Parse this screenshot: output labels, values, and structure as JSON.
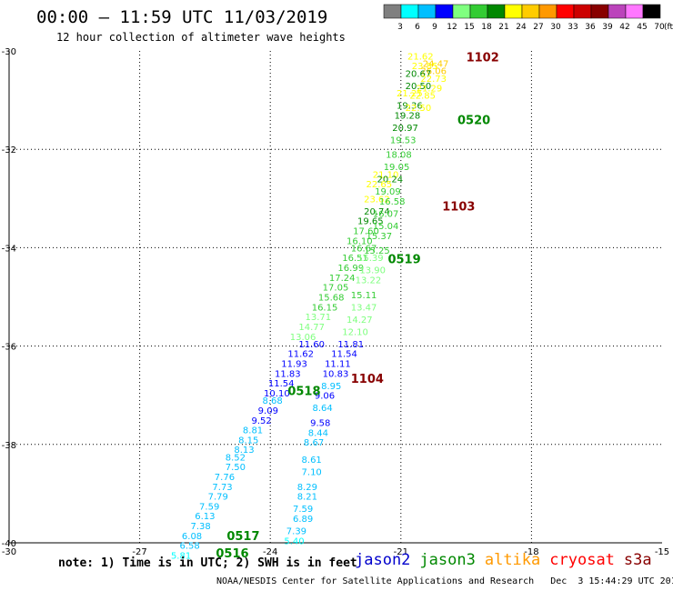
{
  "header": {
    "title": "00:00 – 11:59 UTC 11/03/2019",
    "subtitle": "12 hour collection of altimeter wave heights"
  },
  "legend": {
    "unit": "(ft)",
    "bins": [
      {
        "label": "3",
        "color": "#7f7f7f"
      },
      {
        "label": "6",
        "color": "#00ffff"
      },
      {
        "label": "9",
        "color": "#00bfff"
      },
      {
        "label": "12",
        "color": "#0000ff"
      },
      {
        "label": "15",
        "color": "#7fff7f"
      },
      {
        "label": "18",
        "color": "#33cc33"
      },
      {
        "label": "21",
        "color": "#008800"
      },
      {
        "label": "24",
        "color": "#ffff00"
      },
      {
        "label": "27",
        "color": "#ffcc00"
      },
      {
        "label": "30",
        "color": "#ff9900"
      },
      {
        "label": "33",
        "color": "#ff0000"
      },
      {
        "label": "36",
        "color": "#cc0000"
      },
      {
        "label": "39",
        "color": "#880000"
      },
      {
        "label": "42",
        "color": "#bb44bb"
      },
      {
        "label": "45",
        "color": "#ff77ff"
      },
      {
        "label": "70",
        "color": "#000000"
      }
    ]
  },
  "map": {
    "x_ticks": [
      "-30",
      "-27",
      "-24",
      "-21",
      "-18",
      "-15"
    ],
    "y_ticks": [
      "-30",
      "-32",
      "-34",
      "-36",
      "-38",
      "-40"
    ],
    "x_range": [
      -30,
      -15
    ],
    "y_range": [
      -40,
      -30
    ]
  },
  "chart_data": {
    "type": "scatter",
    "observations": [
      {
        "lon": -20.55,
        "lat": -30.1,
        "v": "21.62",
        "c": "#ffff00"
      },
      {
        "lon": -20.2,
        "lat": -30.25,
        "v": "24.47",
        "c": "#ffcc00"
      },
      {
        "lon": -20.45,
        "lat": -30.3,
        "v": "23.85",
        "c": "#ffff00"
      },
      {
        "lon": -20.25,
        "lat": -30.4,
        "v": "26.06",
        "c": "#ffcc00"
      },
      {
        "lon": -20.6,
        "lat": -30.45,
        "v": "20.67",
        "c": "#008800"
      },
      {
        "lon": -20.25,
        "lat": -30.55,
        "v": "22.73",
        "c": "#ffff00"
      },
      {
        "lon": -20.6,
        "lat": -30.7,
        "v": "20.50",
        "c": "#008800"
      },
      {
        "lon": -20.35,
        "lat": -30.75,
        "v": "21.29",
        "c": "#ffff00"
      },
      {
        "lon": -20.8,
        "lat": -30.85,
        "v": "21.25",
        "c": "#ffff00"
      },
      {
        "lon": -20.5,
        "lat": -30.9,
        "v": "22.85",
        "c": "#ffff00"
      },
      {
        "lon": -20.8,
        "lat": -31.1,
        "v": "19.36",
        "c": "#008800"
      },
      {
        "lon": -20.6,
        "lat": -31.15,
        "v": "22.50",
        "c": "#ffff00"
      },
      {
        "lon": -20.85,
        "lat": -31.3,
        "v": "19.28",
        "c": "#008800"
      },
      {
        "lon": -20.9,
        "lat": -31.55,
        "v": "20.97",
        "c": "#008800"
      },
      {
        "lon": -20.95,
        "lat": -31.8,
        "v": "19.53",
        "c": "#33cc33"
      },
      {
        "lon": -21.05,
        "lat": -32.1,
        "v": "18.08",
        "c": "#33cc33"
      },
      {
        "lon": -21.1,
        "lat": -32.35,
        "v": "19.05",
        "c": "#33cc33"
      },
      {
        "lon": -21.35,
        "lat": -32.5,
        "v": "21.10",
        "c": "#ffff00"
      },
      {
        "lon": -21.25,
        "lat": -32.6,
        "v": "20.24",
        "c": "#008800"
      },
      {
        "lon": -21.5,
        "lat": -32.7,
        "v": "22.65",
        "c": "#ffff00"
      },
      {
        "lon": -21.3,
        "lat": -32.85,
        "v": "19.09",
        "c": "#33cc33"
      },
      {
        "lon": -21.55,
        "lat": -33.0,
        "v": "23.62",
        "c": "#ffff00"
      },
      {
        "lon": -21.2,
        "lat": -33.05,
        "v": "16.58",
        "c": "#33cc33"
      },
      {
        "lon": -21.55,
        "lat": -33.25,
        "v": "20.74",
        "c": "#008800"
      },
      {
        "lon": -21.35,
        "lat": -33.3,
        "v": "16.07",
        "c": "#33cc33"
      },
      {
        "lon": -21.7,
        "lat": -33.45,
        "v": "19.65",
        "c": "#008800"
      },
      {
        "lon": -21.35,
        "lat": -33.55,
        "v": "15.04",
        "c": "#33cc33"
      },
      {
        "lon": -21.8,
        "lat": -33.65,
        "v": "17.60",
        "c": "#33cc33"
      },
      {
        "lon": -21.5,
        "lat": -33.75,
        "v": "15.37",
        "c": "#33cc33"
      },
      {
        "lon": -21.95,
        "lat": -33.85,
        "v": "16.10",
        "c": "#33cc33"
      },
      {
        "lon": -21.85,
        "lat": -34.0,
        "v": "16.67",
        "c": "#33cc33"
      },
      {
        "lon": -21.55,
        "lat": -34.05,
        "v": "15.25",
        "c": "#33cc33"
      },
      {
        "lon": -22.05,
        "lat": -34.2,
        "v": "16.51",
        "c": "#33cc33"
      },
      {
        "lon": -21.7,
        "lat": -34.2,
        "v": "15.39",
        "c": "#7fff7f"
      },
      {
        "lon": -22.15,
        "lat": -34.4,
        "v": "16.99",
        "c": "#33cc33"
      },
      {
        "lon": -21.65,
        "lat": -34.45,
        "v": "13.90",
        "c": "#7fff7f"
      },
      {
        "lon": -22.35,
        "lat": -34.6,
        "v": "17.24",
        "c": "#33cc33"
      },
      {
        "lon": -21.75,
        "lat": -34.65,
        "v": "13.22",
        "c": "#7fff7f"
      },
      {
        "lon": -22.5,
        "lat": -34.8,
        "v": "17.05",
        "c": "#33cc33"
      },
      {
        "lon": -21.85,
        "lat": -34.95,
        "v": "15.11",
        "c": "#33cc33"
      },
      {
        "lon": -22.6,
        "lat": -35.0,
        "v": "15.68",
        "c": "#33cc33"
      },
      {
        "lon": -22.75,
        "lat": -35.2,
        "v": "16.15",
        "c": "#33cc33"
      },
      {
        "lon": -21.85,
        "lat": -35.2,
        "v": "13.47",
        "c": "#7fff7f"
      },
      {
        "lon": -22.9,
        "lat": -35.4,
        "v": "13.71",
        "c": "#7fff7f"
      },
      {
        "lon": -21.95,
        "lat": -35.45,
        "v": "14.27",
        "c": "#7fff7f"
      },
      {
        "lon": -23.05,
        "lat": -35.6,
        "v": "14.77",
        "c": "#7fff7f"
      },
      {
        "lon": -22.05,
        "lat": -35.7,
        "v": "12.10",
        "c": "#7fff7f"
      },
      {
        "lon": -23.25,
        "lat": -35.8,
        "v": "13.06",
        "c": "#7fff7f"
      },
      {
        "lon": -22.15,
        "lat": -35.95,
        "v": "11.81",
        "c": "#0000ff"
      },
      {
        "lon": -23.05,
        "lat": -35.95,
        "v": "11.60",
        "c": "#0000ff"
      },
      {
        "lon": -23.3,
        "lat": -36.15,
        "v": "11.62",
        "c": "#0000ff"
      },
      {
        "lon": -22.3,
        "lat": -36.15,
        "v": "11.54",
        "c": "#0000ff"
      },
      {
        "lon": -23.45,
        "lat": -36.35,
        "v": "11.93",
        "c": "#0000ff"
      },
      {
        "lon": -22.45,
        "lat": -36.35,
        "v": "11.11",
        "c": "#0000ff"
      },
      {
        "lon": -23.6,
        "lat": -36.55,
        "v": "11.83",
        "c": "#0000ff"
      },
      {
        "lon": -22.5,
        "lat": -36.55,
        "v": "10.83",
        "c": "#0000ff"
      },
      {
        "lon": -23.75,
        "lat": -36.75,
        "v": "11.54",
        "c": "#0000ff"
      },
      {
        "lon": -22.6,
        "lat": -36.8,
        "v": "8.95",
        "c": "#00bfff"
      },
      {
        "lon": -23.85,
        "lat": -36.95,
        "v": "10.10",
        "c": "#0000ff"
      },
      {
        "lon": -22.75,
        "lat": -37.0,
        "v": "9.06",
        "c": "#0000ff"
      },
      {
        "lon": -23.95,
        "lat": -37.1,
        "v": "8.68",
        "c": "#00bfff"
      },
      {
        "lon": -22.8,
        "lat": -37.25,
        "v": "8.64",
        "c": "#00bfff"
      },
      {
        "lon": -24.05,
        "lat": -37.3,
        "v": "9.09",
        "c": "#0000ff"
      },
      {
        "lon": -24.2,
        "lat": -37.5,
        "v": "9.52",
        "c": "#0000ff"
      },
      {
        "lon": -22.85,
        "lat": -37.55,
        "v": "9.58",
        "c": "#0000ff"
      },
      {
        "lon": -24.4,
        "lat": -37.7,
        "v": "8.81",
        "c": "#00bfff"
      },
      {
        "lon": -22.9,
        "lat": -37.75,
        "v": "8.44",
        "c": "#00bfff"
      },
      {
        "lon": -24.5,
        "lat": -37.9,
        "v": "8.15",
        "c": "#00bfff"
      },
      {
        "lon": -23.0,
        "lat": -37.95,
        "v": "8.67",
        "c": "#00bfff"
      },
      {
        "lon": -24.6,
        "lat": -38.1,
        "v": "8.13",
        "c": "#00bfff"
      },
      {
        "lon": -24.8,
        "lat": -38.25,
        "v": "8.52",
        "c": "#00bfff"
      },
      {
        "lon": -23.05,
        "lat": -38.3,
        "v": "8.61",
        "c": "#00bfff"
      },
      {
        "lon": -24.8,
        "lat": -38.45,
        "v": "7.50",
        "c": "#00bfff"
      },
      {
        "lon": -23.05,
        "lat": -38.55,
        "v": "7.10",
        "c": "#00bfff"
      },
      {
        "lon": -25.05,
        "lat": -38.65,
        "v": "7.76",
        "c": "#00bfff"
      },
      {
        "lon": -25.1,
        "lat": -38.85,
        "v": "7.73",
        "c": "#00bfff"
      },
      {
        "lon": -23.15,
        "lat": -38.85,
        "v": "8.29",
        "c": "#00bfff"
      },
      {
        "lon": -25.2,
        "lat": -39.05,
        "v": "7.79",
        "c": "#00bfff"
      },
      {
        "lon": -23.15,
        "lat": -39.05,
        "v": "8.21",
        "c": "#00bfff"
      },
      {
        "lon": -25.4,
        "lat": -39.25,
        "v": "7.59",
        "c": "#00bfff"
      },
      {
        "lon": -23.25,
        "lat": -39.3,
        "v": "7.59",
        "c": "#00bfff"
      },
      {
        "lon": -25.5,
        "lat": -39.45,
        "v": "6.13",
        "c": "#00bfff"
      },
      {
        "lon": -23.25,
        "lat": -39.5,
        "v": "6.89",
        "c": "#00bfff"
      },
      {
        "lon": -25.6,
        "lat": -39.65,
        "v": "7.38",
        "c": "#00bfff"
      },
      {
        "lon": -25.8,
        "lat": -39.85,
        "v": "6.08",
        "c": "#00bfff"
      },
      {
        "lon": -23.4,
        "lat": -39.75,
        "v": "7.39",
        "c": "#00bfff"
      },
      {
        "lon": -25.85,
        "lat": -40.05,
        "v": "6.58",
        "c": "#00bfff"
      },
      {
        "lon": -23.45,
        "lat": -39.95,
        "v": "5.40",
        "c": "#00ffff"
      },
      {
        "lon": -26.05,
        "lat": -40.25,
        "v": "5.81",
        "c": "#00ffff"
      }
    ],
    "time_labels": [
      {
        "lon": -19.5,
        "lat": -30.12,
        "t": "1102",
        "c": "#880000"
      },
      {
        "lon": -19.7,
        "lat": -31.4,
        "t": "0520",
        "c": "#008800"
      },
      {
        "lon": -20.05,
        "lat": -33.15,
        "t": "1103",
        "c": "#880000"
      },
      {
        "lon": -21.3,
        "lat": -34.22,
        "t": "0519",
        "c": "#008800"
      },
      {
        "lon": -22.15,
        "lat": -36.65,
        "t": "1104",
        "c": "#880000"
      },
      {
        "lon": -23.6,
        "lat": -36.9,
        "t": "0518",
        "c": "#008800"
      },
      {
        "lon": -25.0,
        "lat": -39.85,
        "t": "0517",
        "c": "#008800"
      },
      {
        "lon": -25.25,
        "lat": -40.2,
        "t": "0516",
        "c": "#008800"
      }
    ]
  },
  "footer": {
    "note": "note: 1) Time is in UTC; 2) SWH is in feet",
    "satellites": [
      {
        "name": "jason2",
        "color": "#0000cc"
      },
      {
        "name": "jason3",
        "color": "#008800"
      },
      {
        "name": "altika",
        "color": "#ff9900"
      },
      {
        "name": "cryosat",
        "color": "#ff0000"
      },
      {
        "name": "s3a",
        "color": "#880000"
      }
    ],
    "credit": "NOAA/NESDIS Center for Satellite Applications and Research   Dec  3 15:44:29 UTC 2019"
  }
}
